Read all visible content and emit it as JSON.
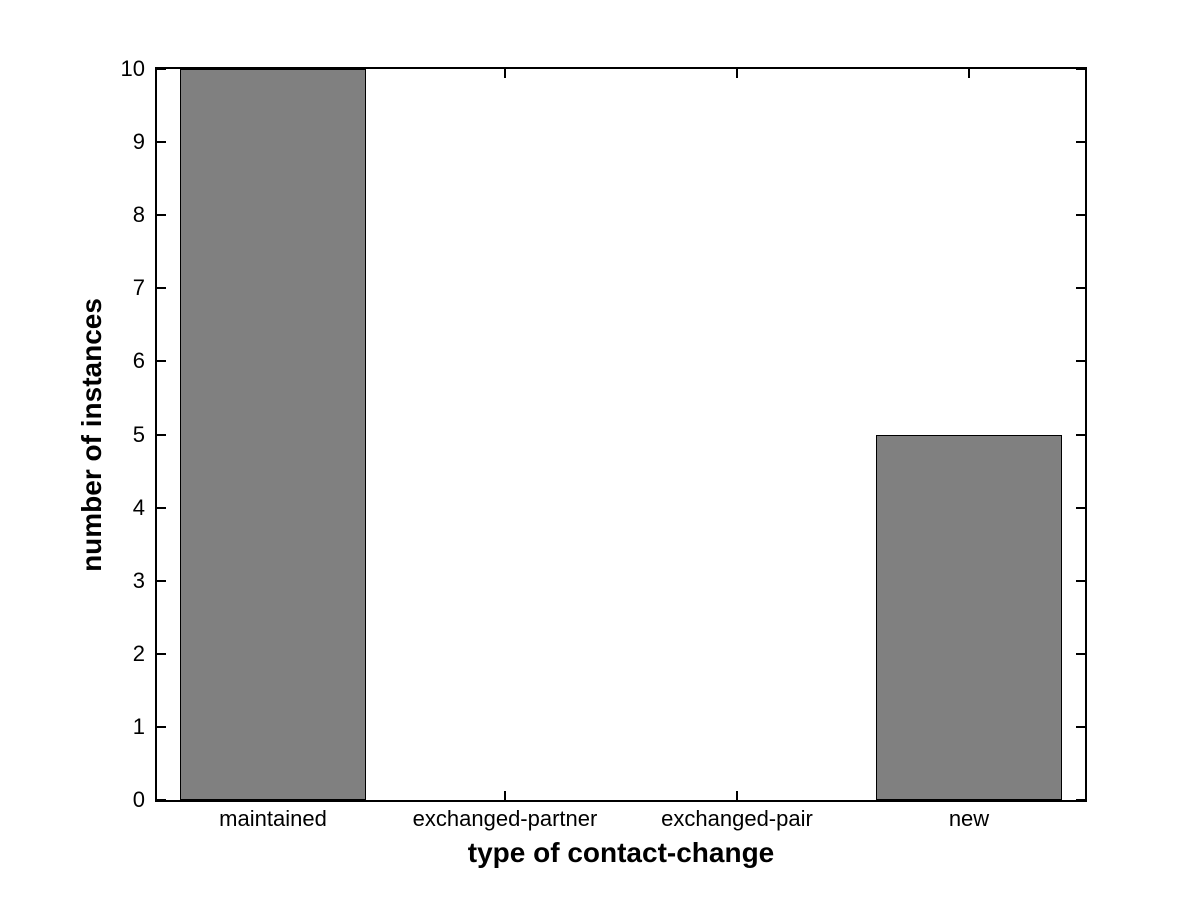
{
  "chart_data": {
    "type": "bar",
    "categories": [
      "maintained",
      "exchanged-partner",
      "exchanged-pair",
      "new"
    ],
    "values": [
      10,
      0,
      0,
      5
    ],
    "xlabel": "type of contact-change",
    "ylabel": "number of instances",
    "ylim": [
      0,
      10
    ],
    "yticks": [
      0,
      1,
      2,
      3,
      4,
      5,
      6,
      7,
      8,
      9,
      10
    ],
    "grid": false,
    "legend": false,
    "bar_width_fraction": 0.8,
    "colors": {
      "bar_fill": "#808080",
      "bar_edge": "#000000",
      "axis": "#000000",
      "background": "#ffffff"
    }
  }
}
